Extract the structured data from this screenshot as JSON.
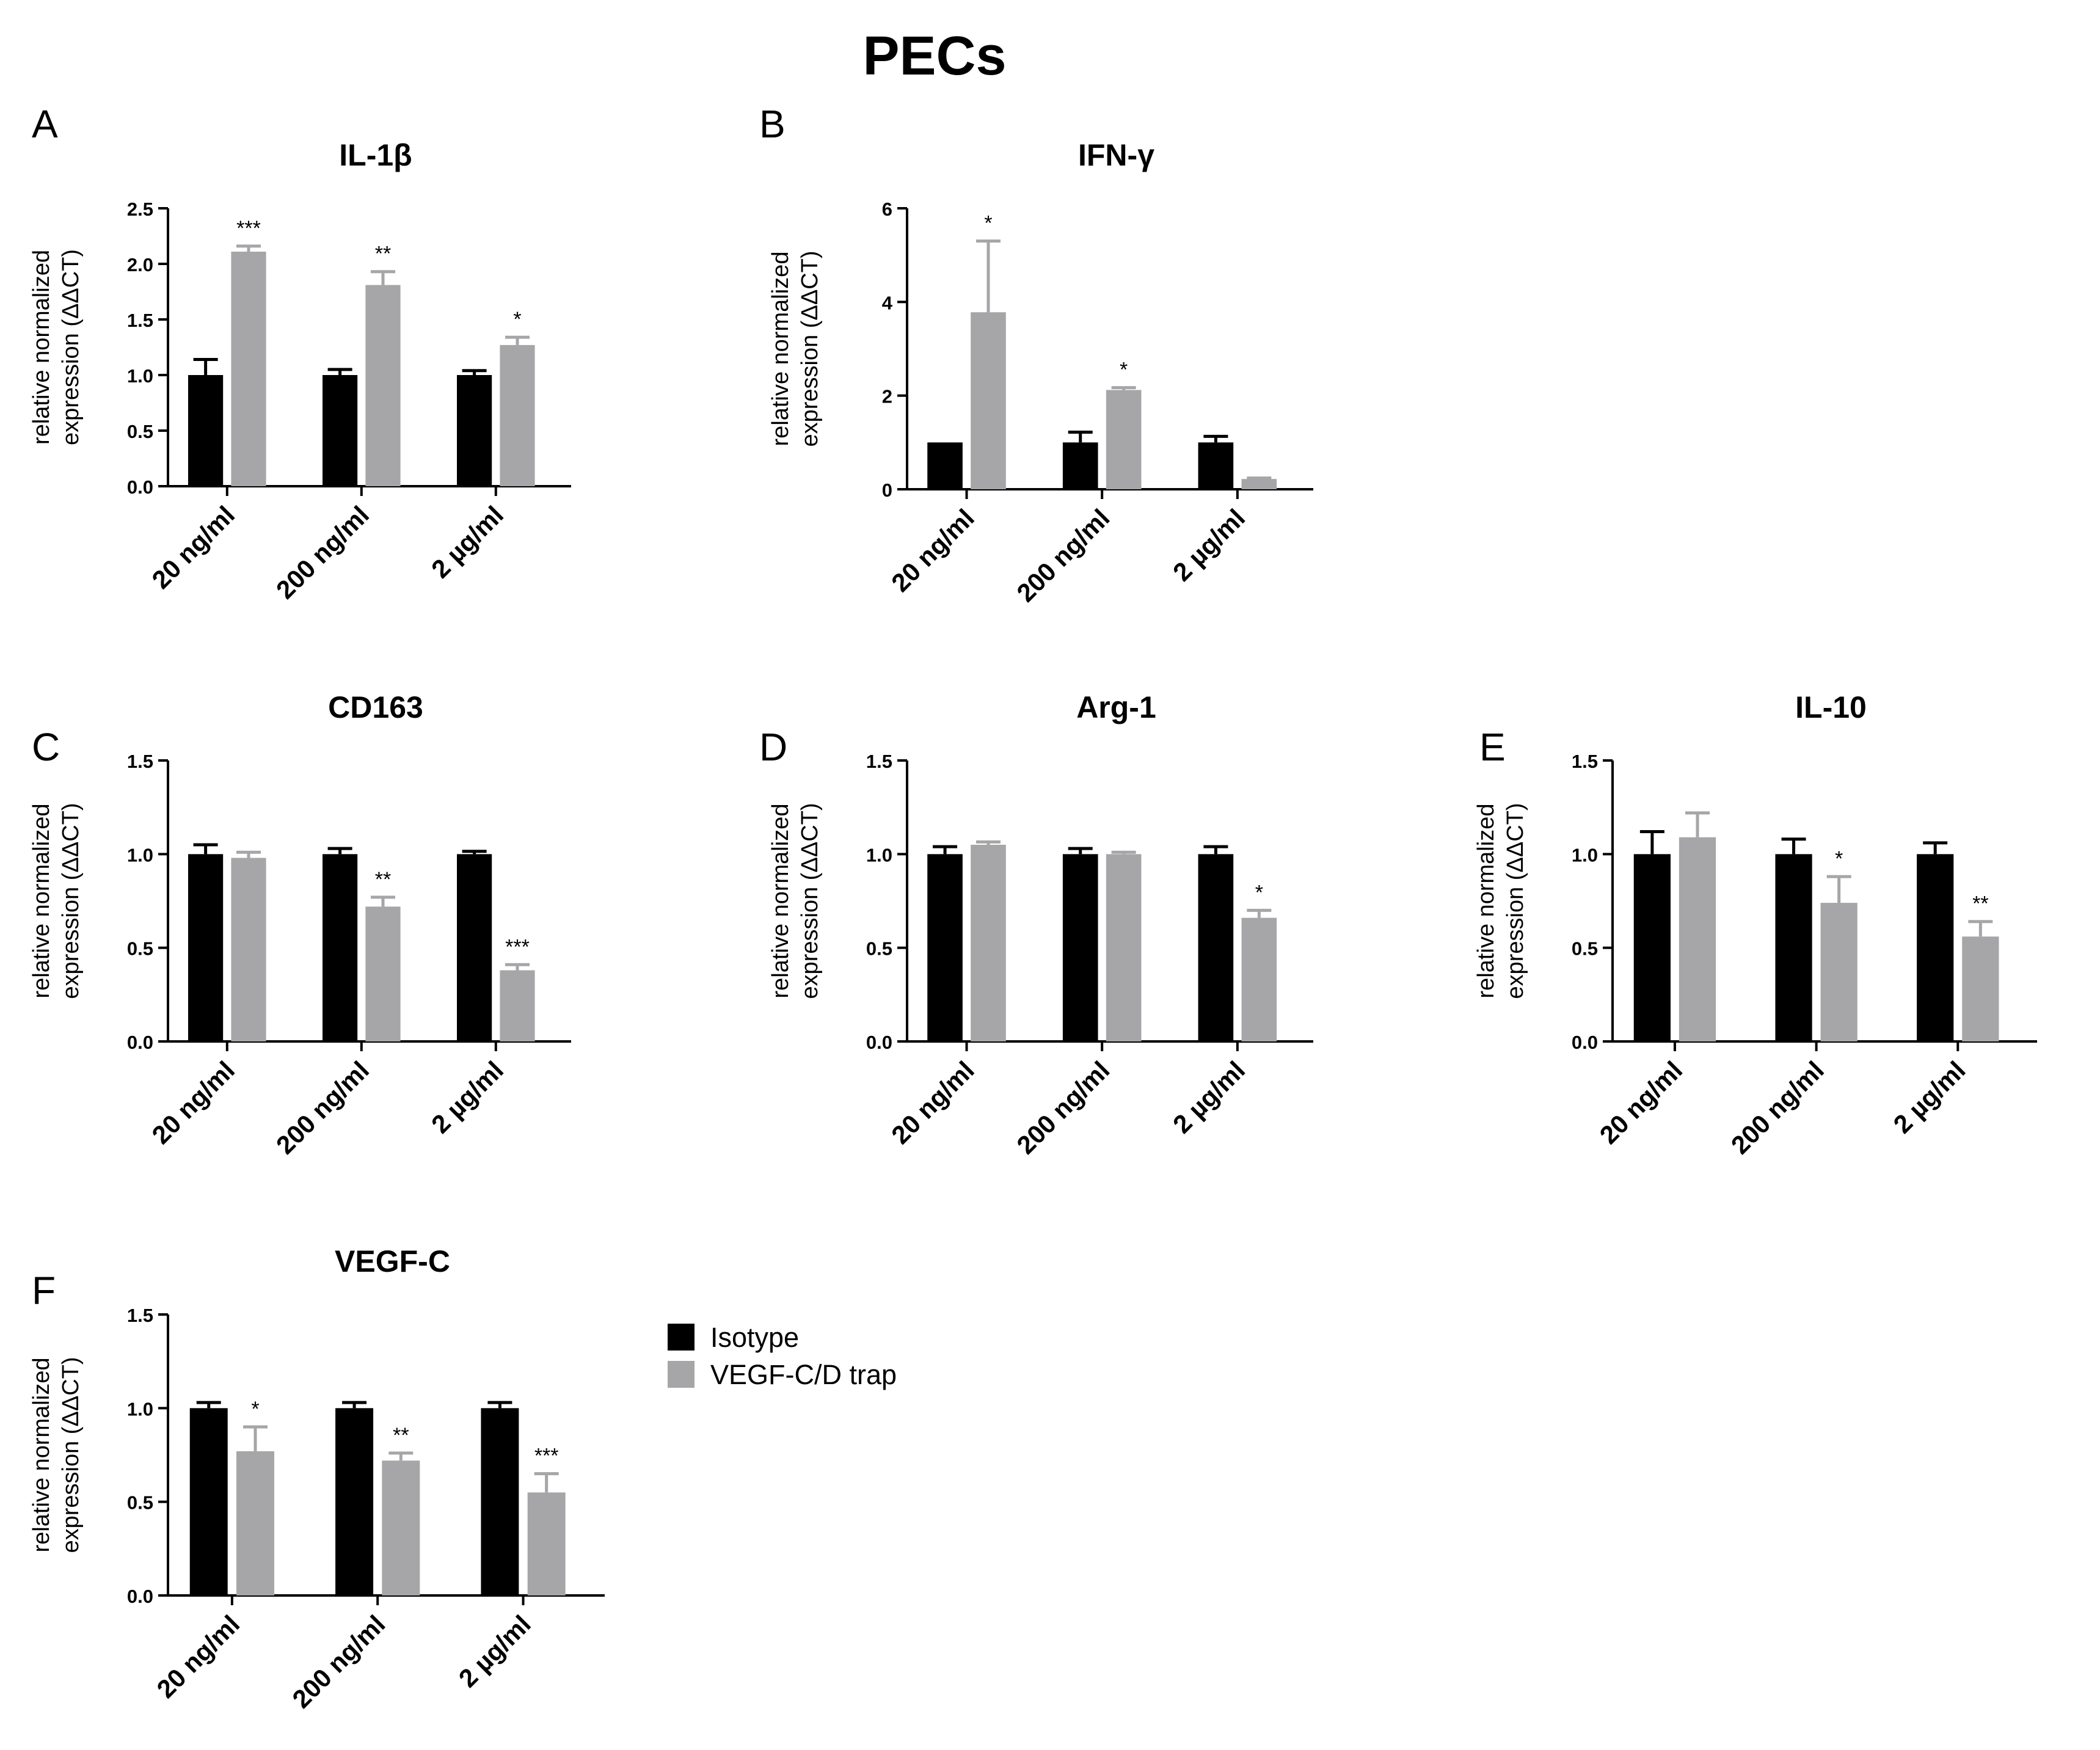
{
  "figure_title": "PECs",
  "legend": [
    {
      "label": "Isotype",
      "color": "#000000"
    },
    {
      "label": "VEGF-C/D trap",
      "color": "#a6a6a8"
    }
  ],
  "chart_data": [
    {
      "panel": "A",
      "type": "bar",
      "title": "IL-1β",
      "ylabel": "relative normalized expression (ΔΔCT)",
      "ylim": [
        0,
        2.5
      ],
      "yticks": [
        "0.0",
        "0.5",
        "1.0",
        "1.5",
        "2.0",
        "2.5"
      ],
      "categories": [
        "20 ng/ml",
        "200 ng/ml",
        "2 µg/ml"
      ],
      "series": [
        {
          "name": "Isotype",
          "values": [
            1.0,
            1.0,
            1.0
          ],
          "errors": [
            0.14,
            0.05,
            0.04
          ]
        },
        {
          "name": "VEGF-C/D trap",
          "values": [
            2.11,
            1.81,
            1.27
          ],
          "errors": [
            0.05,
            0.12,
            0.07
          ]
        }
      ],
      "significance": [
        "***",
        "**",
        "*"
      ]
    },
    {
      "panel": "B",
      "type": "bar",
      "title": "IFN-γ",
      "ylabel": "relative normalized expression (ΔΔCT)",
      "ylim": [
        0,
        6
      ],
      "yticks": [
        "0",
        "2",
        "4",
        "6"
      ],
      "categories": [
        "20 ng/ml",
        "200 ng/ml",
        "2 µg/ml"
      ],
      "series": [
        {
          "name": "Isotype",
          "values": [
            1.0,
            1.0,
            1.0
          ],
          "errors": [
            0,
            0.22,
            0.13
          ]
        },
        {
          "name": "VEGF-C/D trap",
          "values": [
            3.78,
            2.12,
            0.22
          ],
          "errors": [
            1.52,
            0.05,
            0.02
          ]
        }
      ],
      "significance": [
        "*",
        "*",
        ""
      ]
    },
    {
      "panel": "C",
      "type": "bar",
      "title": "CD163",
      "ylabel": "relative normalized expression (ΔΔCT)",
      "ylim": [
        0,
        1.5
      ],
      "yticks": [
        "0.0",
        "0.5",
        "1.0",
        "1.5"
      ],
      "categories": [
        "20 ng/ml",
        "200 ng/ml",
        "2 µg/ml"
      ],
      "series": [
        {
          "name": "Isotype",
          "values": [
            1.0,
            1.0,
            1.0
          ],
          "errors": [
            0.05,
            0.03,
            0.015
          ]
        },
        {
          "name": "VEGF-C/D trap",
          "values": [
            0.98,
            0.72,
            0.38
          ],
          "errors": [
            0.03,
            0.05,
            0.03
          ]
        }
      ],
      "significance": [
        "",
        "**",
        "***"
      ]
    },
    {
      "panel": "D",
      "type": "bar",
      "title": "Arg-1",
      "ylabel": "relative normalized expression (ΔΔCT)",
      "ylim": [
        0,
        1.5
      ],
      "yticks": [
        "0.0",
        "0.5",
        "1.0",
        "1.5"
      ],
      "categories": [
        "20 ng/ml",
        "200 ng/ml",
        "2 µg/ml"
      ],
      "series": [
        {
          "name": "Isotype",
          "values": [
            1.0,
            1.0,
            1.0
          ],
          "errors": [
            0.04,
            0.03,
            0.04
          ]
        },
        {
          "name": "VEGF-C/D trap",
          "values": [
            1.05,
            1.0,
            0.66
          ],
          "errors": [
            0.015,
            0.01,
            0.04
          ]
        }
      ],
      "significance": [
        "",
        "",
        "*"
      ]
    },
    {
      "panel": "E",
      "type": "bar",
      "title": "IL-10",
      "ylabel": "relative normalized expression (ΔΔCT)",
      "ylim": [
        0,
        1.5
      ],
      "yticks": [
        "0.0",
        "0.5",
        "1.0",
        "1.5"
      ],
      "categories": [
        "20 ng/ml",
        "200 ng/ml",
        "2 µg/ml"
      ],
      "series": [
        {
          "name": "Isotype",
          "values": [
            1.0,
            1.0,
            1.0
          ],
          "errors": [
            0.12,
            0.08,
            0.06
          ]
        },
        {
          "name": "VEGF-C/D trap",
          "values": [
            1.09,
            0.74,
            0.56
          ],
          "errors": [
            0.13,
            0.14,
            0.08
          ]
        }
      ],
      "significance": [
        "",
        "*",
        "**"
      ]
    },
    {
      "panel": "F",
      "type": "bar",
      "title": "VEGF-C",
      "ylabel": "relative normalized expression (ΔΔCT)",
      "ylim": [
        0,
        1.5
      ],
      "yticks": [
        "0.0",
        "0.5",
        "1.0",
        "1.5"
      ],
      "categories": [
        "20 ng/ml",
        "200 ng/ml",
        "2 µg/ml"
      ],
      "series": [
        {
          "name": "Isotype",
          "values": [
            1.0,
            1.0,
            1.0
          ],
          "errors": [
            0.03,
            0.03,
            0.03
          ]
        },
        {
          "name": "VEGF-C/D trap",
          "values": [
            0.77,
            0.72,
            0.55
          ],
          "errors": [
            0.13,
            0.04,
            0.1
          ]
        }
      ],
      "significance": [
        "*",
        "**",
        "***"
      ]
    }
  ]
}
